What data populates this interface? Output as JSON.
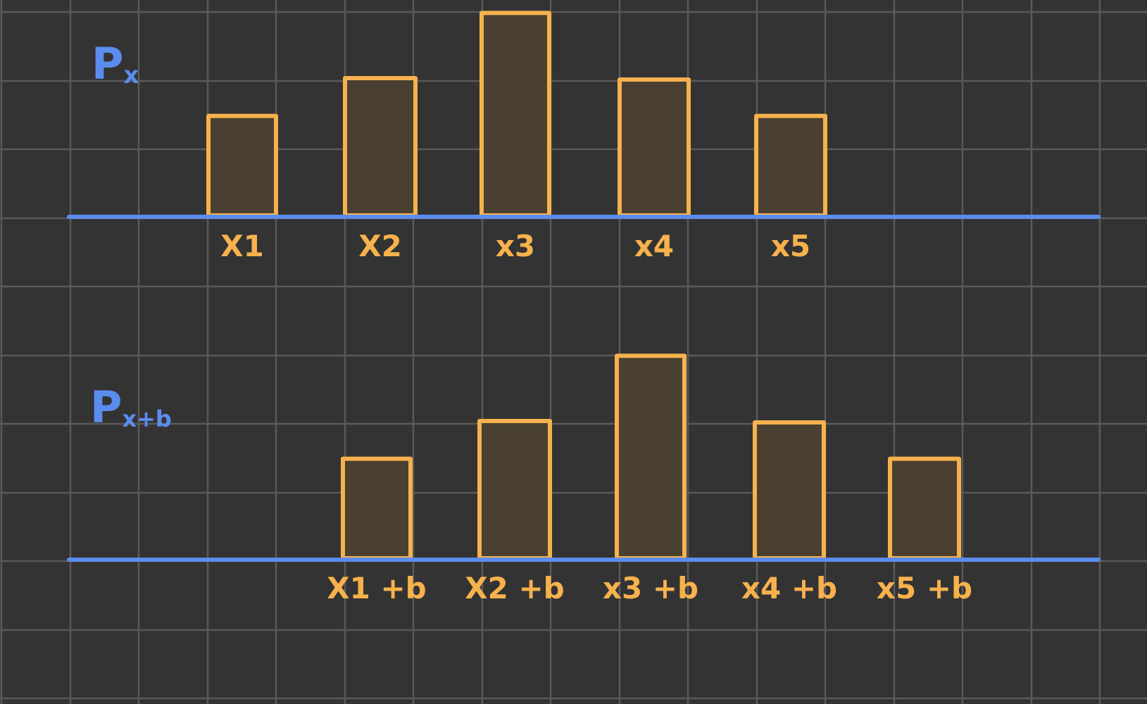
{
  "colors": {
    "background": "#333333",
    "grid": "#5a5a5a",
    "axis": "#5b8def",
    "bar_stroke": "#f7b24d",
    "bar_fill": "#4a4032",
    "label": "#f7b24d",
    "title": "#5b8def"
  },
  "charts": [
    {
      "id": "px",
      "title_main": "P",
      "title_sub": "x",
      "categories": [
        "X1",
        "X2",
        "x3",
        "x4",
        "x5"
      ],
      "values": [
        1.45,
        2.0,
        2.95,
        1.98,
        1.45
      ]
    },
    {
      "id": "pxb",
      "title_main": "P",
      "title_sub": "x+b",
      "categories": [
        "X1 +b",
        "X2 +b",
        "x3 +b",
        "x4 +b",
        "x5 +b"
      ],
      "values": [
        1.45,
        2.0,
        2.95,
        1.98,
        1.45
      ]
    }
  ],
  "chart_data": [
    {
      "type": "bar",
      "title": "Px",
      "categories": [
        "X1",
        "X2",
        "x3",
        "x4",
        "x5"
      ],
      "values": [
        1.45,
        2.0,
        2.95,
        1.98,
        1.45
      ]
    },
    {
      "type": "bar",
      "title": "Px+b",
      "categories": [
        "X1 +b",
        "X2 +b",
        "x3 +b",
        "x4 +b",
        "x5 +b"
      ],
      "values": [
        1.45,
        2.0,
        2.95,
        1.98,
        1.45
      ]
    }
  ]
}
